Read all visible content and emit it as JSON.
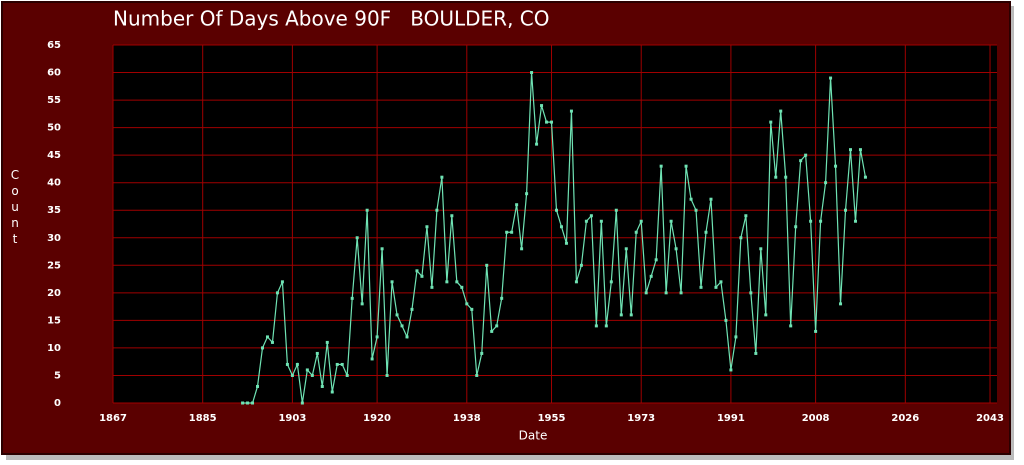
{
  "chart_data": {
    "type": "line",
    "title": "Number Of Days Above 90F   BOULDER, CO",
    "x_label": "Date",
    "y_label": "Count",
    "x": [
      1893,
      1894,
      1895,
      1896,
      1897,
      1898,
      1899,
      1900,
      1901,
      1902,
      1903,
      1904,
      1905,
      1906,
      1907,
      1908,
      1909,
      1910,
      1911,
      1912,
      1913,
      1914,
      1915,
      1916,
      1917,
      1918,
      1919,
      1920,
      1921,
      1922,
      1923,
      1924,
      1925,
      1926,
      1927,
      1928,
      1929,
      1930,
      1931,
      1932,
      1933,
      1934,
      1935,
      1936,
      1937,
      1938,
      1939,
      1940,
      1941,
      1942,
      1943,
      1944,
      1945,
      1946,
      1947,
      1948,
      1949,
      1950,
      1951,
      1952,
      1953,
      1954,
      1955,
      1956,
      1957,
      1958,
      1959,
      1960,
      1961,
      1962,
      1963,
      1964,
      1965,
      1966,
      1967,
      1968,
      1969,
      1970,
      1971,
      1972,
      1973,
      1974,
      1975,
      1976,
      1977,
      1978,
      1979,
      1980,
      1981,
      1982,
      1983,
      1984,
      1985,
      1986,
      1987,
      1988,
      1989,
      1990,
      1991,
      1992,
      1993,
      1994,
      1995,
      1996,
      1997,
      1998,
      1999,
      2000,
      2001,
      2002,
      2003,
      2004,
      2005,
      2006,
      2007,
      2008,
      2009,
      2010,
      2011,
      2012,
      2013,
      2014,
      2015,
      2016,
      2017,
      2018
    ],
    "values": [
      0,
      0,
      0,
      3,
      10,
      12,
      11,
      20,
      22,
      7,
      5,
      7,
      0,
      6,
      5,
      9,
      3,
      11,
      2,
      7,
      7,
      5,
      19,
      30,
      18,
      35,
      8,
      12,
      28,
      5,
      22,
      16,
      14,
      12,
      17,
      24,
      23,
      32,
      21,
      35,
      41,
      22,
      34,
      22,
      21,
      18,
      17,
      5,
      9,
      25,
      13,
      14,
      19,
      31,
      31,
      36,
      28,
      38,
      60,
      47,
      54,
      51,
      51,
      35,
      32,
      29,
      53,
      22,
      25,
      33,
      34,
      14,
      33,
      14,
      22,
      35,
      16,
      28,
      16,
      31,
      33,
      20,
      23,
      26,
      43,
      20,
      33,
      28,
      20,
      43,
      37,
      35,
      21,
      31,
      37,
      21,
      22,
      15,
      6,
      12,
      30,
      34,
      20,
      9,
      28,
      16,
      51,
      41,
      53,
      41,
      14,
      32,
      44,
      45,
      33,
      13,
      33,
      40,
      59,
      43,
      18,
      35,
      46,
      33,
      46,
      41
    ],
    "color": "#6fe3b4",
    "xlim": [
      1867,
      2044.4
    ],
    "xticks": [
      1867,
      1885,
      1903,
      1920,
      1938,
      1955,
      1973,
      1991,
      2008,
      2026,
      2043
    ],
    "ylim": [
      0,
      65
    ],
    "yticks": [
      0,
      5,
      10,
      15,
      20,
      25,
      30,
      35,
      40,
      45,
      50,
      55,
      60,
      65
    ],
    "grid": true
  }
}
